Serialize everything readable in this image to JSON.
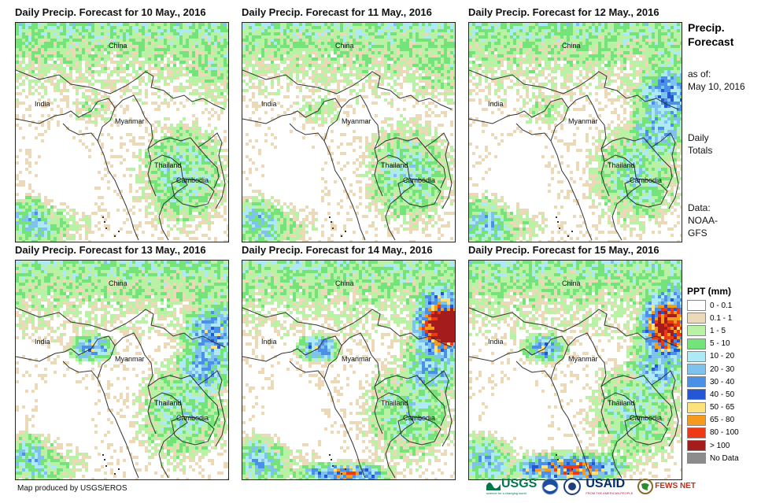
{
  "panels": [
    {
      "title": "Daily Precip. Forecast for 10 May., 2016"
    },
    {
      "title": "Daily Precip. Forecast for 11 May., 2016"
    },
    {
      "title": "Daily Precip. Forecast for 12 May., 2016"
    },
    {
      "title": "Daily Precip. Forecast for 13 May., 2016"
    },
    {
      "title": "Daily Precip. Forecast for 14 May., 2016"
    },
    {
      "title": "Daily Precip. Forecast for 15 May., 2016"
    }
  ],
  "map_labels": {
    "china": "China",
    "india": "India",
    "myanmar": "Myanmar",
    "thailand": "Thailand",
    "cambodia": "Cambodia"
  },
  "side": {
    "title_line1": "Precip.",
    "title_line2": "Forecast",
    "asof_line1": "as of:",
    "asof_line2": "May 10, 2016",
    "totals_line1": "Daily",
    "totals_line2": "Totals",
    "data_line1": "Data:",
    "data_line2": "NOAA-",
    "data_line3": "GFS"
  },
  "legend": {
    "title": "PPT (mm)",
    "items": [
      {
        "label": "0 - 0.1",
        "color": "#ffffff"
      },
      {
        "label": "0.1 - 1",
        "color": "#ecd9b8"
      },
      {
        "label": "1 - 5",
        "color": "#b9f2a4"
      },
      {
        "label": "5 - 10",
        "color": "#74e47a"
      },
      {
        "label": "10 - 20",
        "color": "#aeeaf6"
      },
      {
        "label": "20 - 30",
        "color": "#7fc2ee"
      },
      {
        "label": "30 - 40",
        "color": "#4a90e6"
      },
      {
        "label": "40 - 50",
        "color": "#2457d6"
      },
      {
        "label": "50 - 65",
        "color": "#fbe27c"
      },
      {
        "label": "65 - 80",
        "color": "#f59a1c"
      },
      {
        "label": "80 - 100",
        "color": "#ed3a14"
      },
      {
        "label": "> 100",
        "color": "#a51c1c"
      },
      {
        "label": "No Data",
        "color": "#8c8c8c"
      }
    ]
  },
  "credit": "Map produced by USGS/EROS",
  "logos": {
    "usgs": "USGS",
    "usgs_tag": "science for a changing world",
    "usaid": "USAID",
    "usaid_tag": "FROM THE AMERICAN PEOPLE",
    "fewsnet": "FEWS NET"
  }
}
